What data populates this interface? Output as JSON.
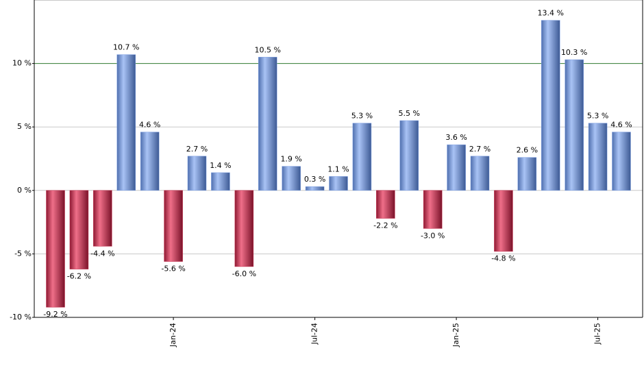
{
  "chart_data": {
    "type": "bar",
    "categories": [
      null,
      null,
      null,
      null,
      null,
      "Jan-24",
      null,
      null,
      null,
      null,
      null,
      "Jul-24",
      null,
      null,
      null,
      null,
      null,
      "Jan-25",
      null,
      null,
      null,
      null,
      null,
      "Jul-25",
      null
    ],
    "values": [
      -9.2,
      -6.2,
      -4.4,
      10.7,
      4.6,
      -5.6,
      2.7,
      1.4,
      -6.0,
      10.5,
      1.9,
      0.3,
      1.1,
      5.3,
      -2.2,
      5.5,
      -3.0,
      3.6,
      2.7,
      -4.8,
      2.6,
      13.4,
      10.3,
      5.3,
      4.6
    ],
    "value_labels": [
      "-9.2 %",
      "-6.2 %",
      "-4.4 %",
      "10.7 %",
      "4.6 %",
      "-5.6 %",
      "2.7 %",
      "1.4 %",
      "-6.0 %",
      "10.5 %",
      "1.9 %",
      "0.3 %",
      "1.1 %",
      "5.3 %",
      "-2.2 %",
      "5.5 %",
      "-3.0 %",
      "3.6 %",
      "2.7 %",
      "-4.8 %",
      "2.6 %",
      "13.4 %",
      "10.3 %",
      "5.3 %",
      "4.6 %"
    ],
    "positive_color": "#7d9fe3",
    "negative_color": "#c9304f",
    "ylim": [
      -10,
      15
    ],
    "yticks": [
      {
        "value": -10,
        "label": "-10 %"
      },
      {
        "value": -5,
        "label": "-5 %"
      },
      {
        "value": 0,
        "label": "0 %"
      },
      {
        "value": 5,
        "label": "5 %"
      },
      {
        "value": 10,
        "label": "10 %"
      }
    ],
    "grid": true,
    "reference_line": 10,
    "reference_color": "#2f7a2f"
  }
}
